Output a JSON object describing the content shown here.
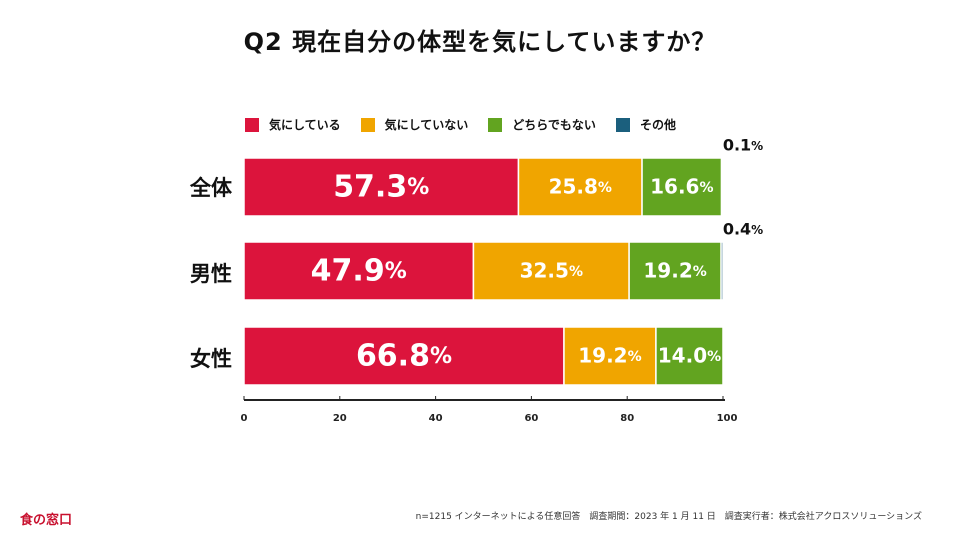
{
  "title": "Q2 現在自分の体型を気にしていますか？",
  "legend": [
    {
      "label": "気にしている",
      "color": "#dc143c"
    },
    {
      "label": "気にしていない",
      "color": "#f0a500"
    },
    {
      "label": "どちらでもない",
      "color": "#62a420"
    },
    {
      "label": "その他",
      "color": "#1b5f7d"
    }
  ],
  "chart_data": {
    "type": "bar",
    "orientation": "horizontal",
    "stacked": true,
    "categories": [
      "全体",
      "男性",
      "女性"
    ],
    "series": [
      {
        "name": "気にしている",
        "color": "#dc143c",
        "values": [
          57.3,
          47.9,
          66.8
        ],
        "labels": [
          "57.3",
          "47.9",
          "66.8"
        ]
      },
      {
        "name": "気にしていない",
        "color": "#f0a500",
        "values": [
          25.8,
          32.5,
          19.2
        ],
        "labels": [
          "25.8",
          "32.5",
          "19.2"
        ]
      },
      {
        "name": "どちらでもない",
        "color": "#62a420",
        "values": [
          16.6,
          19.2,
          14.0
        ],
        "labels": [
          "16.6",
          "19.2",
          "14.0"
        ]
      },
      {
        "name": "その他",
        "color": "#1b5f7d",
        "values": [
          0.1,
          0.4,
          0
        ],
        "labels": [
          "0.1",
          "0.4",
          ""
        ]
      }
    ],
    "xlim": [
      0,
      100
    ],
    "xticks": [
      0,
      20,
      40,
      60,
      80,
      100
    ],
    "unit": "%"
  },
  "footer": {
    "brand": "食の窓口",
    "note": "n=1215 インターネットによる任意回答　調査期間：2023 年 1 月 11 日　調査実行者：株式会社アクロスソリューションズ"
  }
}
